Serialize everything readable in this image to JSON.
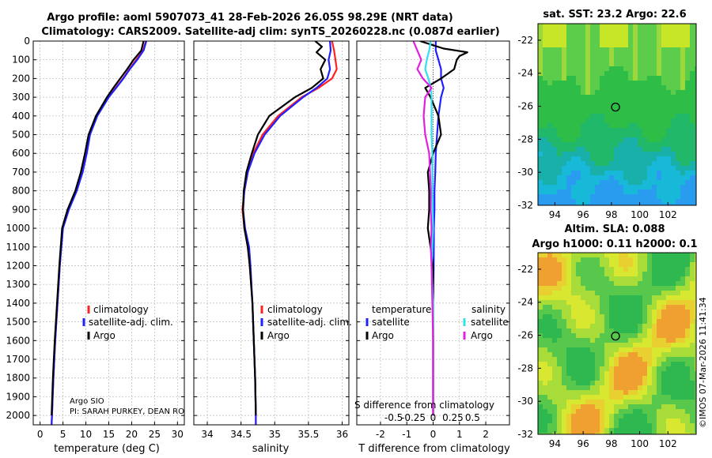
{
  "header": {
    "title_line1": "Argo profile: aoml 5907073_41 28-Feb-2026 26.05S 98.29E (NRT data)",
    "title_line2": "Climatology: CARS2009. Satellite-adj clim: synTS_20260228.nc (0.087d earlier)"
  },
  "sst_map": {
    "title": "sat. SST: 23.2 Argo: 22.6",
    "xticks": [
      "94",
      "96",
      "98",
      "100",
      "102"
    ],
    "yticks": [
      "-22",
      "-24",
      "-26",
      "-28",
      "-30",
      "-32"
    ],
    "xticks_num": [
      94,
      96,
      98,
      100,
      102
    ],
    "yticks_num": [
      -22,
      -24,
      -26,
      -28,
      -30,
      -32
    ],
    "xlim": [
      92.8,
      104
    ],
    "ylim": [
      -32,
      -21
    ],
    "float_lon": 98.29,
    "float_lat": -26.05
  },
  "sla_map": {
    "title_line1": "Altim. SLA: 0.088",
    "title_line2": "Argo h1000: 0.11 h2000: 0.1",
    "xticks": [
      "94",
      "96",
      "98",
      "100",
      "102"
    ],
    "yticks": [
      "-22",
      "-24",
      "-26",
      "-28",
      "-30",
      "-32"
    ],
    "xticks_num": [
      94,
      96,
      98,
      100,
      102
    ],
    "yticks_num": [
      -22,
      -24,
      -26,
      -28,
      -30,
      -32
    ],
    "xlim": [
      92.8,
      104
    ],
    "ylim": [
      -32,
      -21
    ],
    "float_lon": 98.29,
    "float_lat": -26.05
  },
  "credit": "©IMOS 07-Mar-2026 11:41:34",
  "colors": {
    "climatology": "#ff2020",
    "satellite_adj": "#2020ff",
    "argo": "#000000",
    "sal_satellite": "#33e0f0",
    "sal_argo": "#e020e0",
    "grid": "#b8b8b8"
  },
  "chart_data": [
    {
      "type": "line",
      "panel": "temperature",
      "xlabel": "temperature (deg C)",
      "ylabel": "",
      "xlim": [
        -1.5,
        31.5
      ],
      "ylim": [
        2050,
        0
      ],
      "xticks": [
        "0",
        "5",
        "10",
        "15",
        "20",
        "25",
        "30"
      ],
      "xticks_num": [
        0,
        5,
        10,
        15,
        20,
        25,
        30
      ],
      "yticks": [
        "0",
        "100",
        "200",
        "300",
        "400",
        "500",
        "600",
        "700",
        "800",
        "900",
        "1000",
        "1100",
        "1200",
        "1300",
        "1400",
        "1500",
        "1600",
        "1700",
        "1800",
        "1900",
        "2000"
      ],
      "yticks_num": [
        0,
        100,
        200,
        300,
        400,
        500,
        600,
        700,
        800,
        900,
        1000,
        1100,
        1200,
        1300,
        1400,
        1500,
        1600,
        1700,
        1800,
        1900,
        2000
      ],
      "legend": [
        "climatology",
        "satellite-adj. clim.",
        "Argo"
      ],
      "annotation_line1": "Argo SIO",
      "annotation_line2": "PI: SARAH PURKEY, DEAN RO",
      "series": [
        {
          "name": "climatology",
          "color": "#ff2020",
          "depth": [
            0,
            50,
            100,
            150,
            200,
            250,
            300,
            400,
            500,
            600,
            700,
            800,
            900,
            1000,
            1200,
            1400,
            1600,
            1800,
            2000,
            2050
          ],
          "values": [
            23.1,
            22.5,
            21.0,
            19.5,
            18.1,
            16.5,
            14.9,
            12.4,
            10.8,
            10.1,
            9.2,
            7.9,
            6.2,
            4.9,
            4.3,
            3.8,
            3.3,
            2.9,
            2.6,
            2.5
          ]
        },
        {
          "name": "satellite-adj. clim.",
          "color": "#2020ff",
          "depth": [
            0,
            50,
            100,
            150,
            200,
            250,
            300,
            400,
            500,
            600,
            700,
            800,
            900,
            1000,
            1200,
            1400,
            1600,
            1800,
            2000,
            2050
          ],
          "values": [
            23.2,
            22.6,
            21.2,
            19.6,
            18.2,
            16.6,
            15.0,
            12.5,
            10.9,
            10.2,
            9.3,
            8.0,
            6.3,
            5.0,
            4.3,
            3.8,
            3.3,
            2.9,
            2.6,
            2.5
          ]
        },
        {
          "name": "Argo",
          "color": "#000000",
          "depth": [
            0,
            50,
            100,
            150,
            200,
            250,
            300,
            400,
            500,
            600,
            700,
            800,
            900,
            1000,
            1200,
            1400,
            1600,
            1800,
            2000
          ],
          "values": [
            22.6,
            22.1,
            20.4,
            19.0,
            17.5,
            16.0,
            14.6,
            12.2,
            10.6,
            9.8,
            8.9,
            7.7,
            6.0,
            4.8,
            4.2,
            3.7,
            3.2,
            2.8,
            2.5
          ]
        }
      ]
    },
    {
      "type": "line",
      "panel": "salinity",
      "xlabel": "salinity",
      "xlim": [
        33.8,
        36.1
      ],
      "ylim": [
        2050,
        0
      ],
      "xticks": [
        "34",
        "34.5",
        "35",
        "35.5",
        "36"
      ],
      "xticks_num": [
        34,
        34.5,
        35,
        35.5,
        36
      ],
      "legend": [
        "climatology",
        "satellite-adj. clim.",
        "Argo"
      ],
      "series": [
        {
          "name": "climatology",
          "color": "#ff2020",
          "depth": [
            0,
            50,
            100,
            150,
            200,
            250,
            300,
            400,
            500,
            600,
            700,
            800,
            900,
            1000,
            1100,
            1200,
            1400,
            1600,
            1800,
            2000,
            2050
          ],
          "values": [
            35.85,
            35.88,
            35.9,
            35.92,
            35.85,
            35.65,
            35.4,
            35.05,
            34.82,
            34.68,
            34.6,
            34.55,
            34.52,
            34.55,
            34.6,
            34.63,
            34.67,
            34.69,
            34.71,
            34.72,
            34.72
          ]
        },
        {
          "name": "satellite-adj. clim.",
          "color": "#2020ff",
          "depth": [
            0,
            50,
            100,
            150,
            200,
            250,
            300,
            400,
            500,
            600,
            700,
            800,
            900,
            1000,
            1100,
            1200,
            1400,
            1600,
            1800,
            2000,
            2050
          ],
          "values": [
            35.82,
            35.83,
            35.8,
            35.82,
            35.78,
            35.62,
            35.42,
            35.08,
            34.85,
            34.7,
            34.6,
            34.55,
            34.53,
            34.56,
            34.62,
            34.64,
            34.67,
            34.69,
            34.71,
            34.72,
            34.72
          ]
        },
        {
          "name": "Argo",
          "color": "#000000",
          "depth": [
            0,
            30,
            60,
            100,
            150,
            200,
            250,
            300,
            400,
            500,
            600,
            700,
            800,
            900,
            1000,
            1100,
            1200,
            1400,
            1600,
            1800,
            2000
          ],
          "values": [
            35.6,
            35.7,
            35.62,
            35.75,
            35.68,
            35.72,
            35.55,
            35.3,
            34.92,
            34.75,
            34.66,
            34.58,
            34.54,
            34.53,
            34.55,
            34.6,
            34.63,
            34.67,
            34.69,
            34.71,
            34.72
          ]
        }
      ]
    },
    {
      "type": "line",
      "panel": "difference",
      "xlabel": "T difference from climatology",
      "xlabel_inner": "S difference from climatology",
      "xlim": [
        -2.9,
        2.9
      ],
      "ylim": [
        2050,
        0
      ],
      "xticks": [
        "-2",
        "-1",
        "0",
        "1",
        "2"
      ],
      "xticks_num": [
        -2,
        -1,
        0,
        1,
        2
      ],
      "sal_xticks": [
        "-0.5",
        "-0.25",
        "0",
        "0.25",
        "0.5"
      ],
      "sal_xticks_num": [
        -0.5,
        -0.25,
        0,
        0.25,
        0.5
      ],
      "legend_temp_title": "temperature",
      "legend_sal_title": "salinity",
      "legend_temp": [
        "satellite",
        "Argo"
      ],
      "legend_sal": [
        "satellite",
        "Argo"
      ],
      "series": [
        {
          "name": "temperature satellite",
          "color": "#2020ff",
          "depth": [
            0,
            50,
            100,
            150,
            200,
            250,
            300,
            400,
            500,
            600,
            700,
            800,
            900,
            1000,
            1200,
            1400,
            1600,
            1800,
            2000
          ],
          "values": [
            0.1,
            0.1,
            0.2,
            0.3,
            0.3,
            0.4,
            0.3,
            0.2,
            0.15,
            0.1,
            0.08,
            0.05,
            0.05,
            0.03,
            0.02,
            0.0,
            0.0,
            0.0,
            0.0
          ]
        },
        {
          "name": "temperature Argo",
          "color": "#000000",
          "depth": [
            0,
            40,
            60,
            80,
            100,
            150,
            200,
            250,
            300,
            400,
            500,
            600,
            700,
            800,
            900,
            1000,
            1100,
            1200,
            1300,
            1400,
            1600,
            1800,
            2000
          ],
          "values": [
            -0.5,
            0.4,
            1.3,
            1.0,
            0.9,
            0.8,
            0.3,
            -0.3,
            -0.1,
            0.2,
            0.3,
            0.0,
            -0.2,
            -0.15,
            -0.15,
            -0.2,
            -0.1,
            0.0,
            0.0,
            0.0,
            0.0,
            0.0,
            0.0
          ]
        },
        {
          "name": "salinity satellite",
          "color": "#33e0f0",
          "depth": [
            0,
            50,
            100,
            150,
            200,
            250,
            300,
            400,
            500,
            600,
            800,
            1000,
            1200,
            1400,
            1600,
            1800,
            2000
          ],
          "values": [
            -0.03,
            -0.05,
            -0.08,
            -0.1,
            -0.06,
            -0.03,
            -0.02,
            -0.02,
            -0.02,
            -0.01,
            -0.01,
            0.0,
            -0.02,
            0.0,
            0.0,
            0.0,
            0.0
          ]
        },
        {
          "name": "salinity Argo",
          "color": "#e020e0",
          "depth": [
            0,
            50,
            100,
            150,
            200,
            250,
            300,
            400,
            500,
            600,
            700,
            800,
            900,
            1000,
            1100,
            1200,
            1400,
            1600,
            1800,
            2000
          ],
          "values": [
            -0.25,
            -0.2,
            -0.15,
            -0.2,
            -0.13,
            -0.02,
            -0.1,
            -0.12,
            -0.1,
            -0.05,
            -0.04,
            -0.03,
            -0.03,
            -0.02,
            -0.03,
            -0.02,
            -0.01,
            0.0,
            0.0,
            0.0
          ]
        }
      ]
    }
  ]
}
